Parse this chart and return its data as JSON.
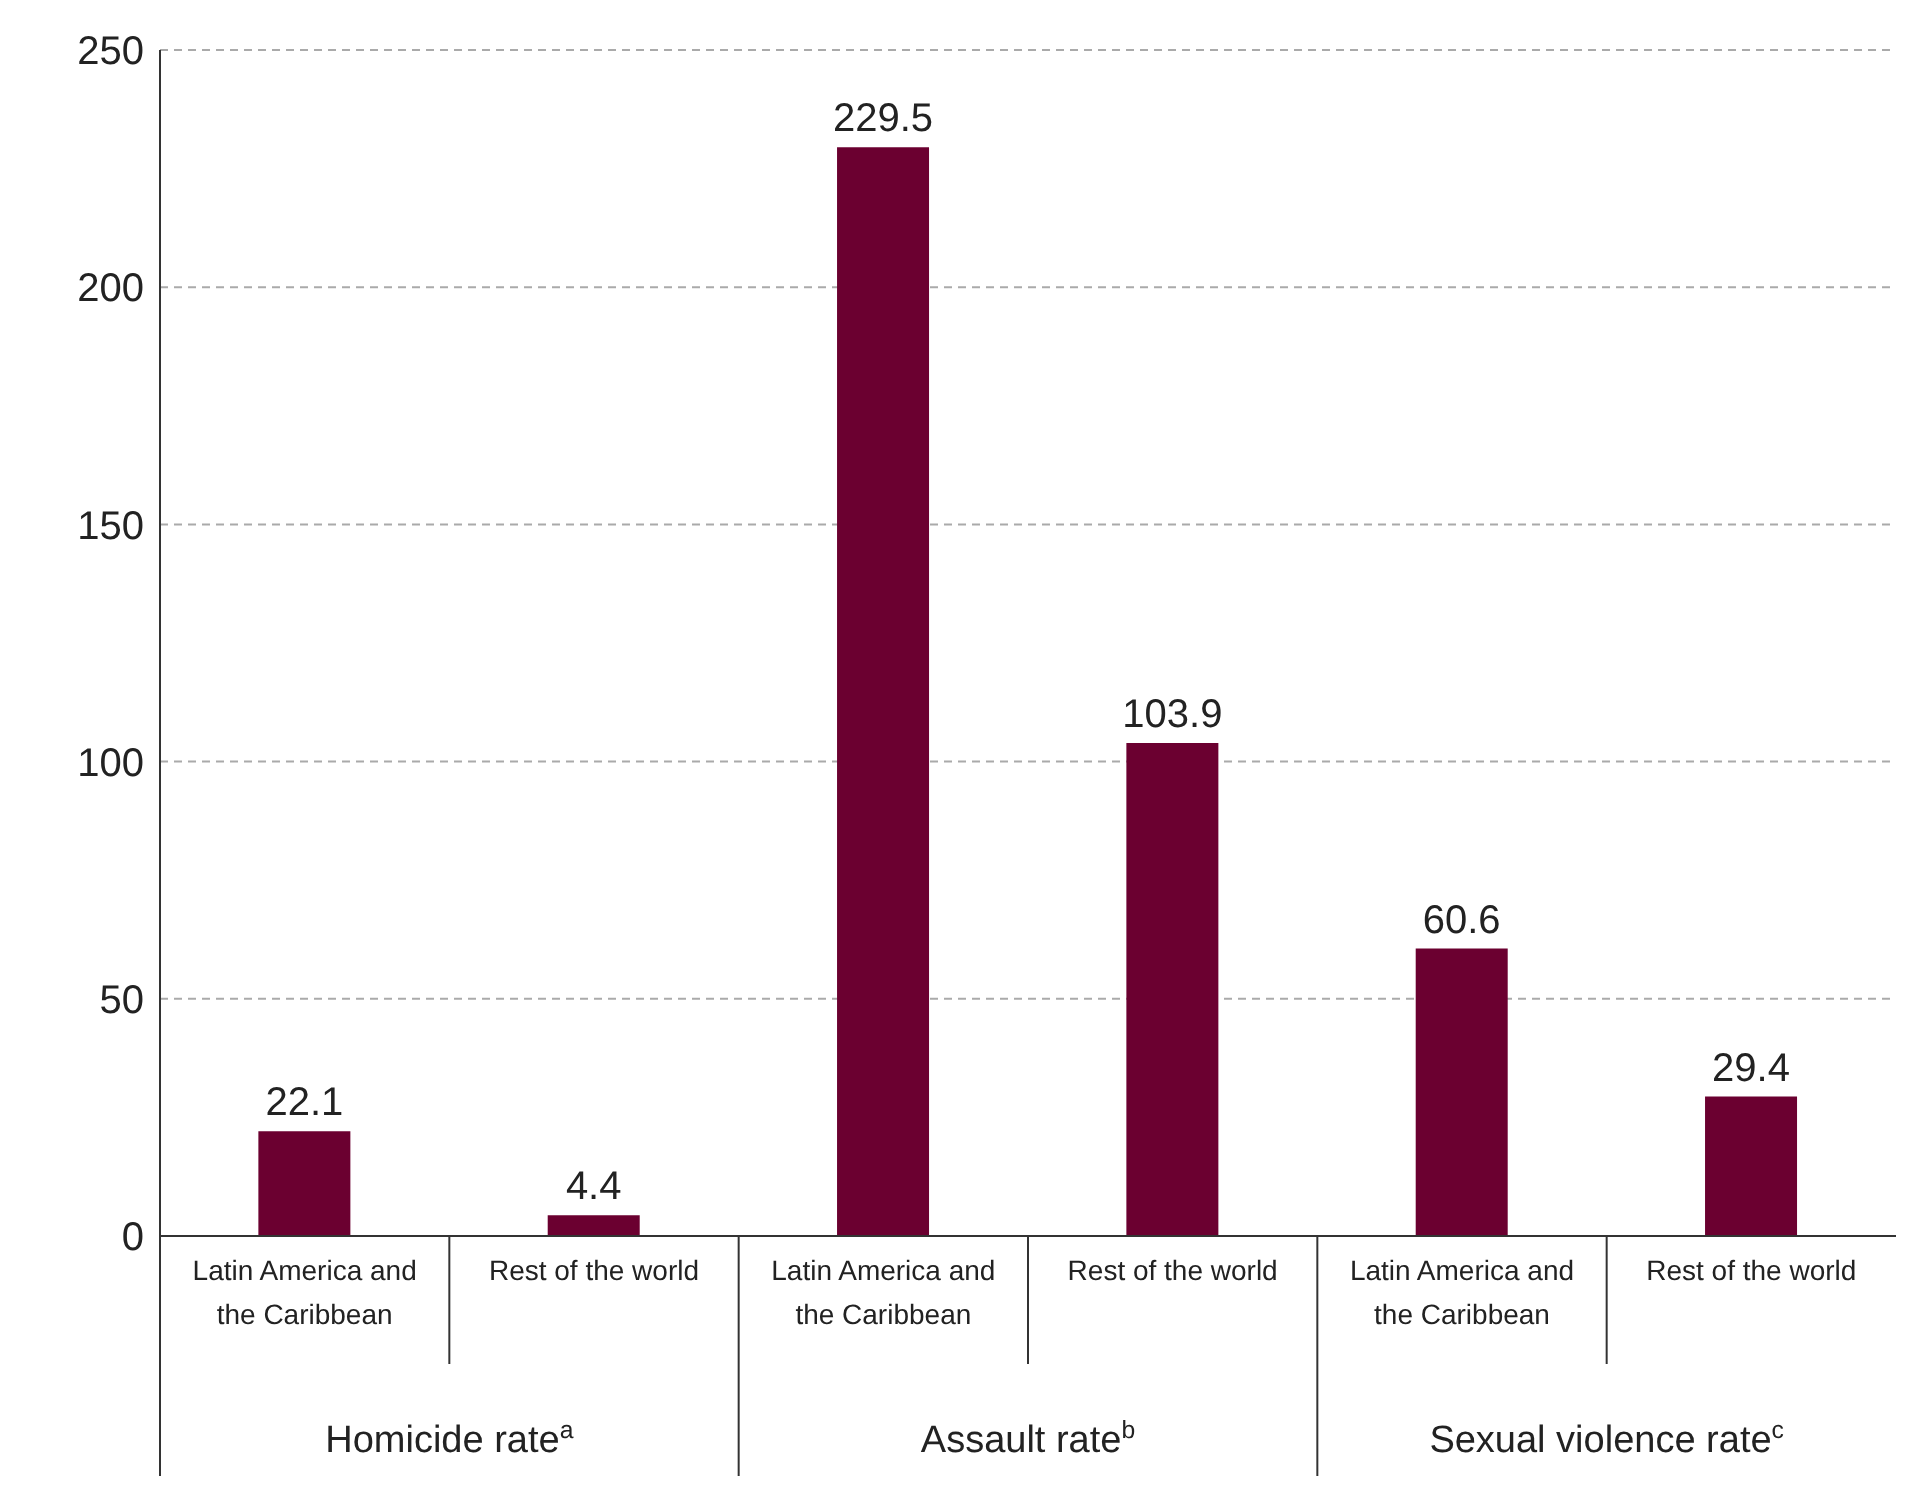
{
  "chart_data": {
    "type": "bar",
    "categories": [
      "Latin America and the Caribbean",
      "Rest of the world",
      "Latin America and the Caribbean",
      "Rest of the world",
      "Latin America and the Caribbean",
      "Rest of the world"
    ],
    "values": [
      22.1,
      4.4,
      229.5,
      103.9,
      60.6,
      29.4
    ],
    "color": "#6b0030",
    "ylim": [
      0,
      250
    ],
    "yticks": [
      0,
      50,
      100,
      150,
      200,
      250
    ],
    "grid": "y",
    "data_labels": true,
    "annotations": [
      "Homicide rate$^{a}$",
      "Assault rate$^{b}$",
      "Sexual violence rate$^{c}$"
    ]
  }
}
